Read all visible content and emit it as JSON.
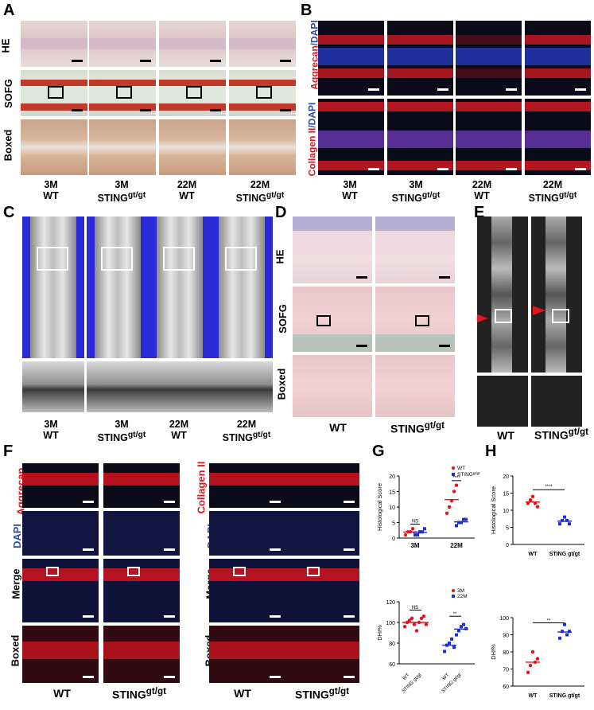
{
  "panels": {
    "A": {
      "letter": "A",
      "rows": [
        "HE",
        "SOFG",
        "Boxed"
      ],
      "cols": [
        {
          "a": "3M",
          "b": "WT"
        },
        {
          "a": "3M",
          "b": "STING",
          "sup": "gt/gt"
        },
        {
          "a": "22M",
          "b": "WT"
        },
        {
          "a": "22M",
          "b": "STING",
          "sup": "gt/gt"
        }
      ]
    },
    "B": {
      "letter": "B",
      "row1_red": "Aggrecan",
      "row1_sep": "/",
      "row1_blue": "DAPI",
      "row2_red": "Collagen II",
      "row2_sep": "/",
      "row2_blue": "DAPI",
      "cols": [
        {
          "a": "3M",
          "b": "WT"
        },
        {
          "a": "3M",
          "b": "STING",
          "sup": "gt/gt"
        },
        {
          "a": "22M",
          "b": "WT"
        },
        {
          "a": "22M",
          "b": "STING",
          "sup": "gt/gt"
        }
      ]
    },
    "C": {
      "letter": "C",
      "cols": [
        {
          "a": "3M",
          "b": "WT"
        },
        {
          "a": "3M",
          "b": "STING",
          "sup": "gt/gt"
        },
        {
          "a": "22M",
          "b": "WT"
        },
        {
          "a": "22M",
          "b": "STING",
          "sup": "gt/gt"
        }
      ]
    },
    "D": {
      "letter": "D",
      "rows": [
        "HE",
        "SOFG",
        "Boxed"
      ],
      "cols": [
        {
          "b": "WT"
        },
        {
          "b": "STING",
          "sup": "gt/gt"
        }
      ]
    },
    "E": {
      "letter": "E",
      "cols": [
        {
          "b": "WT"
        },
        {
          "b": "STING",
          "sup": "gt/gt"
        }
      ]
    },
    "F": {
      "letter": "F",
      "left_rows": [
        {
          "t": "Aggrecan",
          "c": "red"
        },
        {
          "t": "DAPI",
          "c": "blue"
        },
        {
          "t": "Merge",
          "c": "black"
        },
        {
          "t": "Boxed",
          "c": "black"
        }
      ],
      "right_rows": [
        {
          "t": "Collagen II",
          "c": "red"
        },
        {
          "t": "DAPI",
          "c": "blue"
        },
        {
          "t": "Merge",
          "c": "black"
        },
        {
          "t": "Boxed",
          "c": "black"
        }
      ],
      "cols": [
        {
          "b": "WT"
        },
        {
          "b": "STING",
          "sup": "gt/gt"
        }
      ]
    },
    "G": {
      "letter": "G"
    },
    "H": {
      "letter": "H"
    }
  },
  "chart_data": [
    {
      "type": "scatter",
      "panel": "G-top",
      "ylabel": "Histological Score",
      "ylim": [
        0,
        20
      ],
      "yticks": [
        0,
        5,
        10,
        15,
        20
      ],
      "categories": [
        "3M",
        "22M"
      ],
      "legend": [
        {
          "name": "WT",
          "color": "#e1141d"
        },
        {
          "name": "STING",
          "sup": "gt/gt",
          "color": "#1f2fd0"
        }
      ],
      "series": [
        {
          "name": "WT",
          "values": [
            [
              1,
              2,
              2,
              3
            ],
            [
              8,
              10,
              12,
              15,
              17
            ]
          ]
        },
        {
          "name": "STING gt/gt",
          "values": [
            [
              1,
              1,
              2,
              2,
              3
            ],
            [
              4,
              5,
              5,
              6,
              6
            ]
          ]
        }
      ],
      "significance": [
        "NS",
        "****"
      ]
    },
    {
      "type": "scatter",
      "panel": "G-bottom",
      "ylabel": "DHI%",
      "ylim": [
        60,
        120
      ],
      "yticks": [
        60,
        80,
        100,
        120
      ],
      "categories": [
        "WT",
        "STING gt/gt",
        "WT",
        "STING gt/gt"
      ],
      "legend": [
        {
          "name": "3M",
          "color": "#e1141d"
        },
        {
          "name": "22M",
          "color": "#1f2fd0"
        }
      ],
      "significance": [
        "NS",
        "**"
      ]
    },
    {
      "type": "scatter",
      "panel": "H-top",
      "ylabel": "Histological Score",
      "ylim": [
        0,
        20
      ],
      "yticks": [
        0,
        5,
        10,
        15,
        20
      ],
      "categories": [
        "WT",
        "STING gt/gt"
      ],
      "significance": [
        "****"
      ]
    },
    {
      "type": "scatter",
      "panel": "H-bottom",
      "ylabel": "DHI%",
      "ylim": [
        60,
        100
      ],
      "yticks": [
        60,
        70,
        80,
        90,
        100
      ],
      "categories": [
        "WT",
        "STING gt/gt"
      ],
      "significance": [
        "**"
      ]
    }
  ],
  "colors": {
    "red": "#e1141d",
    "blue": "#1f2fd0"
  }
}
